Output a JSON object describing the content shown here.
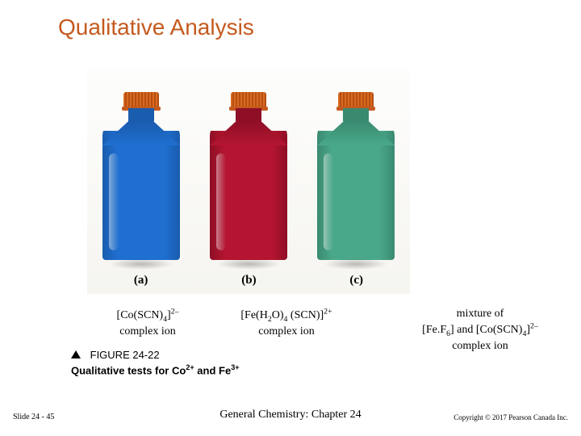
{
  "title": "Qualitative Analysis",
  "bottles": [
    {
      "color": "#1f6fd0",
      "shoulder": "#1a5cae",
      "panel": "(a)"
    },
    {
      "color": "#b51530",
      "shoulder": "#8e0f26",
      "panel": "(b)"
    },
    {
      "color": "#4aa88a",
      "shoulder": "#3a8a70",
      "panel": "(c)"
    }
  ],
  "captions": {
    "a": {
      "line1_html": "[Co(SCN)<sub>4</sub>]<sup>2–</sup>",
      "line2": "complex ion"
    },
    "b": {
      "line1_html": "[Fe(H<sub>2</sub>O)<sub>4</sub> (SCN)]<sup>2+</sup>",
      "line2": "complex ion"
    },
    "c": {
      "line1": "mixture of",
      "line2_html": "[Fe.F<sub>6</sub>] and [Co(SCN)<sub>4</sub>]<sup>2–</sup>",
      "line3": "complex ion"
    }
  },
  "figure": {
    "number": "FIGURE 24-22",
    "title_html": "Qualitative tests for Co<sup>2+</sup> and Fe<sup>3+</sup>"
  },
  "footer": {
    "left": "Slide 24 - 45",
    "center": "General Chemistry: Chapter 24",
    "right": "Copyright © 2017 Pearson Canada Inc."
  },
  "colors": {
    "title": "#c45a1f",
    "cap": "#d86a20",
    "background": "#ffffff"
  }
}
